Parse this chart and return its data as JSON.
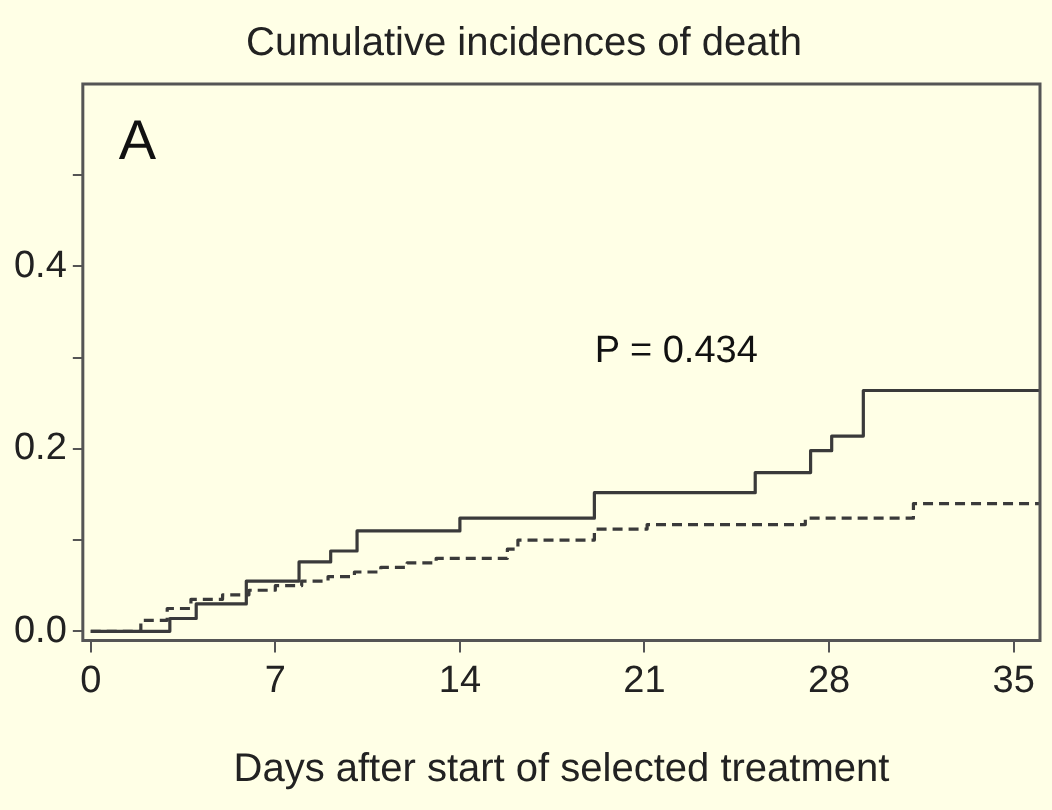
{
  "chart_data": {
    "type": "step",
    "title": "Cumulative incidences of death",
    "xlabel": "Days after start of selected treatment",
    "annotations": [
      "A",
      "P = 0.434"
    ],
    "series": [
      {
        "color": "#3a3a3a",
        "line_style": "solid",
        "x": [
          0,
          3.0,
          4.0,
          5.9,
          7.9,
          9.1,
          10.1,
          14.0,
          19.1,
          25.2,
          27.3,
          28.1,
          29.3,
          36
        ],
        "values": [
          0,
          0.014,
          0.03,
          0.055,
          0.076,
          0.088,
          0.11,
          0.124,
          0.152,
          0.174,
          0.198,
          0.214,
          0.264,
          0.264
        ]
      },
      {
        "color": "#3a3a3a",
        "line_style": "dashed",
        "x": [
          0,
          1.9,
          2.9,
          3.8,
          5,
          6,
          7,
          8,
          9,
          10,
          11,
          12,
          13.1,
          15.8,
          16.2,
          19.1,
          21.1,
          27.1,
          31.2,
          36
        ],
        "values": [
          0,
          0.012,
          0.025,
          0.035,
          0.04,
          0.045,
          0.05,
          0.055,
          0.06,
          0.065,
          0.07,
          0.075,
          0.08,
          0.09,
          0.1,
          0.112,
          0.117,
          0.124,
          0.14,
          0.14
        ]
      }
    ],
    "xlim": [
      -0.3,
      36
    ],
    "xticks": [
      0,
      7,
      14,
      21,
      28,
      35
    ],
    "ylim": [
      -0.01,
      0.6
    ],
    "yticks": [
      {
        "value": 0,
        "label": "0.0"
      },
      {
        "value": 0.1,
        "label": null
      },
      {
        "value": 0.2,
        "label": "0.2"
      },
      {
        "value": 0.3,
        "label": null
      },
      {
        "value": 0.4,
        "label": "0.4"
      },
      {
        "value": 0.5,
        "label": null
      }
    ],
    "grid": false,
    "legend": false,
    "marker": "none"
  }
}
